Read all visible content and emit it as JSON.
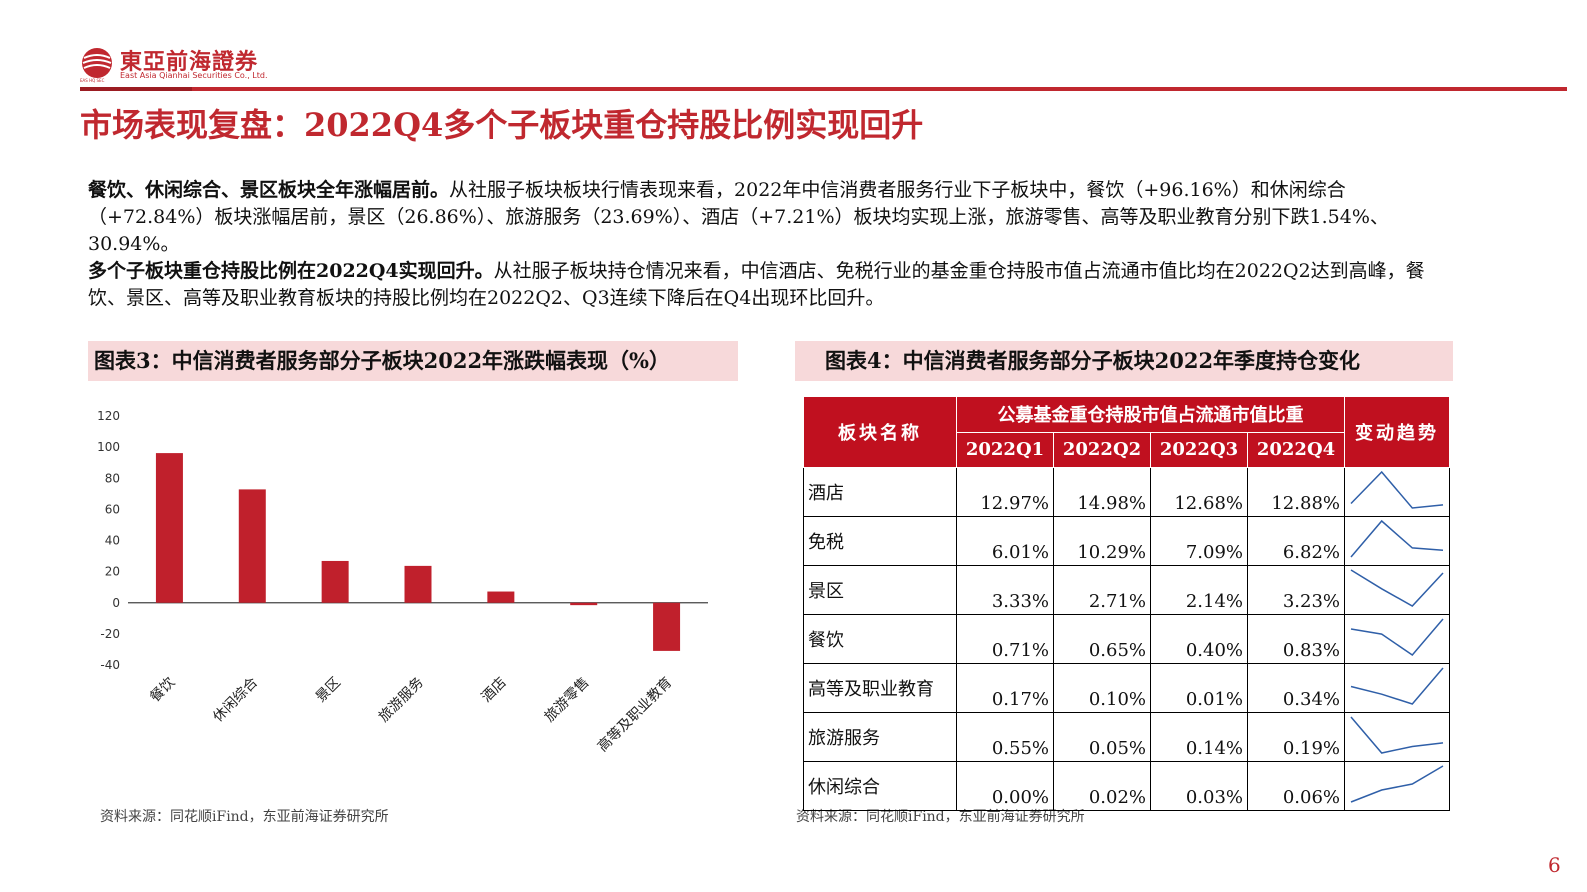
{
  "header": {
    "logo_cn": "東亞前海證券",
    "logo_en": "East Asia Qianhai Securities Co., Ltd.",
    "logo_sub": "EAS HQ SEC",
    "brand_color": "#c0282f"
  },
  "title": "市场表现复盘：2022Q4多个子板块重仓持股比例实现回升",
  "paragraphs": [
    {
      "bold": "餐饮、休闲综合、景区板块全年涨幅居前。",
      "text": "从社服子板块板块行情表现来看，2022年中信消费者服务行业下子板块中，餐饮（+96.16%）和休闲综合（+72.84%）板块涨幅居前，景区（26.86%）、旅游服务（23.69%）、酒店（+7.21%）板块均实现上涨，旅游零售、高等及职业教育分别下跌1.54%、30.94%。"
    },
    {
      "bold": "多个子板块重仓持股比例在2022Q4实现回升。",
      "text": "从社服子板块持仓情况来看，中信酒店、免税行业的基金重仓持股市值占流通市值比均在2022Q2达到高峰，餐饮、景区、高等及职业教育板块的持股比例均在2022Q2、Q3连续下降后在Q4出现环比回升。"
    }
  ],
  "figure3": {
    "title": "图表3：中信消费者服务部分子板块2022年涨跌幅表现（%）",
    "source": "资料来源：同花顺iFind，东亚前海证券研究所"
  },
  "figure4": {
    "title": "图表4：中信消费者服务部分子板块2022年季度持仓变化",
    "source": "资料来源：同花顺iFind，东亚前海证券研究所"
  },
  "chart_data": {
    "type": "bar",
    "categories": [
      "餐饮",
      "休闲综合",
      "景区",
      "旅游服务",
      "酒店",
      "旅游零售",
      "高等及职业教育"
    ],
    "values": [
      96.16,
      72.84,
      26.86,
      23.69,
      7.21,
      -1.54,
      -30.94
    ],
    "ylim": [
      -40,
      120
    ],
    "yticks": [
      "120",
      "100",
      "80",
      "60",
      "40",
      "20",
      "0",
      "-20",
      "-40"
    ],
    "color": "#c0202c",
    "grid": false
  },
  "table": {
    "col_name": "板块名称",
    "group_header": "公募基金重仓持股市值占流通市值比重",
    "col_trend": "变动趋势",
    "quarters": [
      "2022Q1",
      "2022Q2",
      "2022Q3",
      "2022Q4"
    ],
    "rows": [
      {
        "name": "酒店",
        "values": [
          "12.97%",
          "14.98%",
          "12.68%",
          "12.88%"
        ],
        "series": [
          12.97,
          14.98,
          12.68,
          12.88
        ]
      },
      {
        "name": "免税",
        "values": [
          "6.01%",
          "10.29%",
          "7.09%",
          "6.82%"
        ],
        "series": [
          6.01,
          10.29,
          7.09,
          6.82
        ]
      },
      {
        "name": "景区",
        "values": [
          "3.33%",
          "2.71%",
          "2.14%",
          "3.23%"
        ],
        "series": [
          3.33,
          2.71,
          2.14,
          3.23
        ]
      },
      {
        "name": "餐饮",
        "values": [
          "0.71%",
          "0.65%",
          "0.40%",
          "0.83%"
        ],
        "series": [
          0.71,
          0.65,
          0.4,
          0.83
        ]
      },
      {
        "name": "高等及职业教育",
        "values": [
          "0.17%",
          "0.10%",
          "0.01%",
          "0.34%"
        ],
        "series": [
          0.17,
          0.1,
          0.01,
          0.34
        ]
      },
      {
        "name": "旅游服务",
        "values": [
          "0.55%",
          "0.05%",
          "0.14%",
          "0.19%"
        ],
        "series": [
          0.55,
          0.05,
          0.14,
          0.19
        ]
      },
      {
        "name": "休闲综合",
        "values": [
          "0.00%",
          "0.02%",
          "0.03%",
          "0.06%"
        ],
        "series": [
          0.0,
          0.02,
          0.03,
          0.06
        ]
      }
    ],
    "header_color": "#c0101f",
    "sparkline_color": "#2f5fa8"
  },
  "page_number": "6"
}
